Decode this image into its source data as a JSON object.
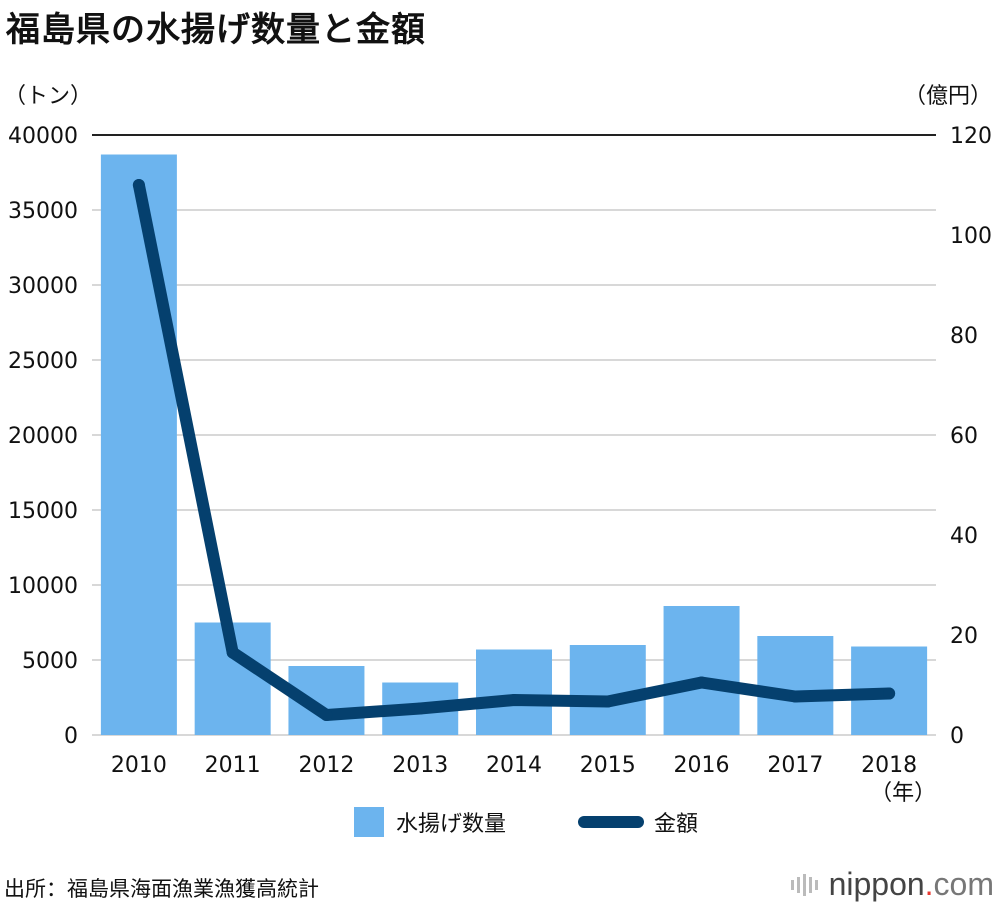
{
  "title": "福島県の水揚げ数量と金額",
  "source": "出所：福島県海面漁業漁獲高統計",
  "logo": {
    "name": "nippon",
    "dot": ".",
    "suffix": "com"
  },
  "colors": {
    "bar": "#6cb4ee",
    "line": "#05406e",
    "grid": "#cccccc",
    "axis": "#222222"
  },
  "chart_data": {
    "type": "bar",
    "title": "福島県の水揚げ数量と金額",
    "categories": [
      "2010",
      "2011",
      "2012",
      "2013",
      "2014",
      "2015",
      "2016",
      "2017",
      "2018"
    ],
    "x_unit": "（年）",
    "series": [
      {
        "name": "水揚げ数量",
        "type": "bar",
        "axis": "left",
        "values": [
          38700,
          7500,
          4600,
          3500,
          5700,
          6000,
          8600,
          6600,
          5900
        ]
      },
      {
        "name": "金額",
        "type": "line",
        "axis": "right",
        "values": [
          110,
          16.5,
          4,
          5.3,
          7,
          6.7,
          10.5,
          7.7,
          8.3
        ]
      }
    ],
    "y_left": {
      "unit": "（トン）",
      "range": [
        0,
        40000
      ],
      "ticks": [
        "0",
        "5000",
        "10000",
        "15000",
        "20000",
        "25000",
        "30000",
        "35000",
        "40000"
      ]
    },
    "y_right": {
      "unit": "（億円）",
      "range": [
        0,
        120
      ],
      "ticks": [
        "0",
        "20",
        "40",
        "60",
        "80",
        "100",
        "120"
      ]
    },
    "grid": true,
    "legend_position": "bottom-center"
  }
}
